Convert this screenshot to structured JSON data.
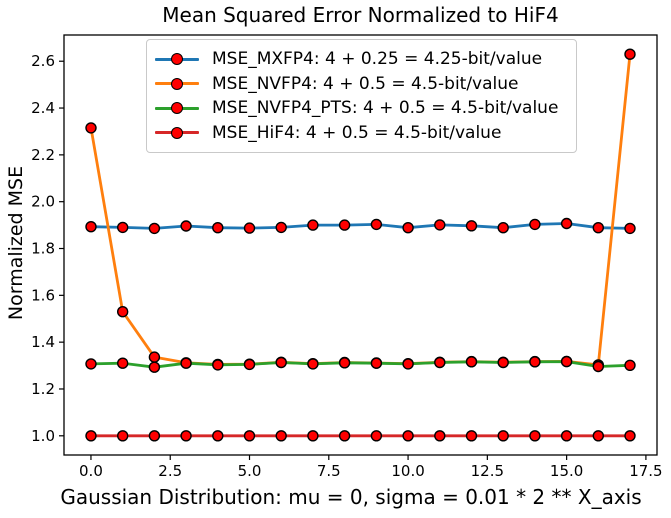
{
  "chart_data": {
    "type": "line",
    "title": "Mean Squared Error Normalized to HiF4",
    "xlabel": "Gaussian Distribution: mu = 0, sigma = 0.01 * 2 ** X_axis",
    "ylabel": "Normalized MSE",
    "grid": false,
    "legend_position": "upper center",
    "xlim": [
      -0.85,
      17.85
    ],
    "ylim": [
      0.918,
      2.712
    ],
    "x_ticks": [
      "0.0",
      "2.5",
      "5.0",
      "7.5",
      "10.0",
      "12.5",
      "15.0",
      "17.5"
    ],
    "y_ticks": [
      "1.0",
      "1.2",
      "1.4",
      "1.6",
      "1.8",
      "2.0",
      "2.2",
      "2.4",
      "2.6"
    ],
    "x": [
      0,
      1,
      2,
      3,
      4,
      5,
      6,
      7,
      8,
      9,
      10,
      11,
      12,
      13,
      14,
      15,
      16,
      17
    ],
    "marker": {
      "shape": "circle",
      "fill": "#ff0000",
      "edge": "#000000",
      "radius": 5
    },
    "series": [
      {
        "name": "MSE_MXFP4",
        "legend_label": "MSE_MXFP4: 4 + 0.25 = 4.25-bit/value",
        "color": "#1f77b4",
        "values": [
          1.893,
          1.89,
          1.886,
          1.896,
          1.889,
          1.887,
          1.89,
          1.9,
          1.9,
          1.903,
          1.889,
          1.901,
          1.897,
          1.889,
          1.903,
          1.907,
          1.889,
          1.886
        ]
      },
      {
        "name": "MSE_NVFP4",
        "legend_label": "MSE_NVFP4: 4 + 0.5 = 4.5-bit/value",
        "color": "#ff7f0e",
        "values": [
          2.315,
          1.53,
          1.336,
          1.312,
          1.305,
          1.306,
          1.314,
          1.308,
          1.313,
          1.311,
          1.308,
          1.314,
          1.317,
          1.314,
          1.317,
          1.318,
          1.303,
          2.63
        ]
      },
      {
        "name": "MSE_NVFP4_PTS",
        "legend_label": "MSE_NVFP4_PTS: 4 + 0.5 = 4.5-bit/value",
        "color": "#2ca02c",
        "values": [
          1.307,
          1.31,
          1.293,
          1.31,
          1.303,
          1.305,
          1.313,
          1.307,
          1.312,
          1.31,
          1.307,
          1.313,
          1.316,
          1.313,
          1.316,
          1.317,
          1.296,
          1.301
        ]
      },
      {
        "name": "MSE_HiF4",
        "legend_label": "MSE_HiF4: 4 + 0.5 = 4.5-bit/value",
        "color": "#d62728",
        "values": [
          1.0,
          1.0,
          1.0,
          1.0,
          1.0,
          1.0,
          1.0,
          1.0,
          1.0,
          1.0,
          1.0,
          1.0,
          1.0,
          1.0,
          1.0,
          1.0,
          1.0,
          1.0
        ]
      }
    ]
  }
}
